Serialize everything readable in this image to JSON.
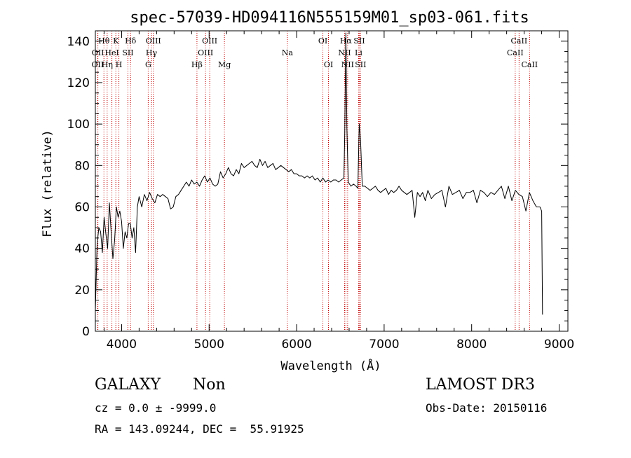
{
  "colors": {
    "line": "#000000",
    "marker": "#c00000",
    "background": "#ffffff"
  },
  "chart_data": {
    "type": "line",
    "title": "spec-57039-HD094116N555159M01_sp03-061.fits",
    "xlabel": "Wavelength (Å)",
    "ylabel": "Flux (relative)",
    "xlim": [
      3700,
      9100
    ],
    "ylim": [
      0,
      145
    ],
    "xticks": [
      4000,
      5000,
      6000,
      7000,
      8000,
      9000
    ],
    "yticks": [
      0,
      20,
      40,
      60,
      80,
      100,
      120,
      140
    ],
    "grid": false,
    "line_markers": [
      {
        "label": "OII",
        "x": 3727,
        "row": 2
      },
      {
        "label": "OII",
        "x": 3729,
        "row": 1
      },
      {
        "label": "Hθ",
        "x": 3798,
        "row": 0
      },
      {
        "label": "Hη",
        "x": 3835,
        "row": 2
      },
      {
        "label": "HeI",
        "x": 3889,
        "row": 1
      },
      {
        "label": "K",
        "x": 3934,
        "row": 0
      },
      {
        "label": "H",
        "x": 3969,
        "row": 2
      },
      {
        "label": "Hδ",
        "x": 4102,
        "row": 0
      },
      {
        "label": "SII",
        "x": 4072,
        "row": 1
      },
      {
        "label": "OIII",
        "x": 4363,
        "row": 0
      },
      {
        "label": "Hγ",
        "x": 4341,
        "row": 1
      },
      {
        "label": "G",
        "x": 4304,
        "row": 2
      },
      {
        "label": "Hβ",
        "x": 4861,
        "row": 2
      },
      {
        "label": "OIII",
        "x": 5007,
        "row": 0
      },
      {
        "label": "OIII",
        "x": 4959,
        "row": 1
      },
      {
        "label": "Mg",
        "x": 5175,
        "row": 2
      },
      {
        "label": "Na",
        "x": 5894,
        "row": 1
      },
      {
        "label": "OI",
        "x": 6300,
        "row": 0
      },
      {
        "label": "OI",
        "x": 6364,
        "row": 2
      },
      {
        "label": "Hα",
        "x": 6563,
        "row": 0
      },
      {
        "label": "NII",
        "x": 6548,
        "row": 1
      },
      {
        "label": "NII",
        "x": 6583,
        "row": 2
      },
      {
        "label": "SII",
        "x": 6716,
        "row": 0
      },
      {
        "label": "Li",
        "x": 6708,
        "row": 1
      },
      {
        "label": "SII",
        "x": 6731,
        "row": 2
      },
      {
        "label": "CaII",
        "x": 8542,
        "row": 0
      },
      {
        "label": "CaII",
        "x": 8498,
        "row": 1
      },
      {
        "label": "CaII",
        "x": 8662,
        "row": 2
      }
    ],
    "series": [
      {
        "x": [
          3700,
          3720,
          3740,
          3760,
          3780,
          3800,
          3820,
          3840,
          3860,
          3880,
          3900,
          3920,
          3940,
          3960,
          3980,
          4000,
          4020,
          4040,
          4060,
          4080,
          4100,
          4120,
          4140,
          4160,
          4180,
          4200,
          4230,
          4260,
          4290,
          4320,
          4350,
          4380,
          4410,
          4440,
          4470,
          4500,
          4530,
          4560,
          4590,
          4620,
          4650,
          4680,
          4710,
          4740,
          4770,
          4800,
          4830,
          4860,
          4890,
          4920,
          4950,
          4980,
          5010,
          5040,
          5070,
          5100,
          5130,
          5160,
          5190,
          5220,
          5250,
          5280,
          5310,
          5340,
          5370,
          5400,
          5430,
          5460,
          5490,
          5520,
          5550,
          5580,
          5610,
          5640,
          5670,
          5700,
          5730,
          5760,
          5790,
          5820,
          5850,
          5880,
          5910,
          5940,
          5970,
          6000,
          6030,
          6060,
          6090,
          6120,
          6150,
          6180,
          6210,
          6240,
          6270,
          6300,
          6330,
          6360,
          6390,
          6420,
          6450,
          6480,
          6510,
          6540,
          6550,
          6563,
          6575,
          6590,
          6620,
          6650,
          6680,
          6700,
          6716,
          6731,
          6750,
          6780,
          6810,
          6840,
          6870,
          6900,
          6930,
          6960,
          6990,
          7020,
          7050,
          7080,
          7110,
          7140,
          7170,
          7200,
          7230,
          7260,
          7290,
          7320,
          7350,
          7380,
          7410,
          7440,
          7470,
          7500,
          7540,
          7580,
          7620,
          7660,
          7700,
          7740,
          7780,
          7820,
          7860,
          7900,
          7940,
          7980,
          8020,
          8060,
          8100,
          8140,
          8180,
          8220,
          8260,
          8300,
          8340,
          8380,
          8420,
          8460,
          8500,
          8540,
          8580,
          8620,
          8660,
          8700,
          8740,
          8780,
          8800,
          8810
        ],
        "y": [
          10,
          42,
          50,
          48,
          38,
          55,
          47,
          40,
          62,
          48,
          35,
          44,
          60,
          55,
          58,
          53,
          40,
          48,
          45,
          52,
          52,
          45,
          50,
          38,
          60,
          65,
          60,
          66,
          63,
          67,
          64,
          62,
          66,
          65,
          66,
          65,
          64,
          59,
          60,
          65,
          66,
          68,
          70,
          72,
          70,
          73,
          71,
          72,
          70,
          73,
          75,
          72,
          74,
          71,
          70,
          71,
          77,
          74,
          76,
          79,
          76,
          75,
          78,
          76,
          81,
          79,
          80,
          81,
          82,
          80,
          79,
          83,
          80,
          82,
          79,
          80,
          81,
          78,
          79,
          80,
          79,
          78,
          77,
          78,
          76,
          76,
          75,
          75,
          74,
          75,
          74,
          75,
          73,
          74,
          72,
          74,
          72,
          73,
          72,
          73,
          73,
          72,
          73,
          74,
          95,
          144,
          98,
          72,
          70,
          71,
          70,
          69,
          100,
          92,
          70,
          70,
          69,
          68,
          69,
          70,
          68,
          67,
          68,
          69,
          66,
          68,
          67,
          68,
          70,
          68,
          67,
          66,
          67,
          68,
          55,
          67,
          65,
          67,
          63,
          68,
          64,
          66,
          67,
          68,
          60,
          70,
          66,
          67,
          68,
          64,
          67,
          67,
          68,
          62,
          68,
          67,
          65,
          67,
          66,
          68,
          70,
          64,
          70,
          63,
          68,
          66,
          65,
          58,
          67,
          63,
          60,
          60,
          58,
          8
        ]
      }
    ]
  },
  "info": {
    "object_class": "GALAXY",
    "subclass": "Non",
    "survey": "LAMOST DR3",
    "cz": "cz = 0.0 ± -9999.0",
    "obs_date": "Obs-Date: 20150116",
    "coords": "RA = 143.09244, DEC =  55.91925"
  }
}
